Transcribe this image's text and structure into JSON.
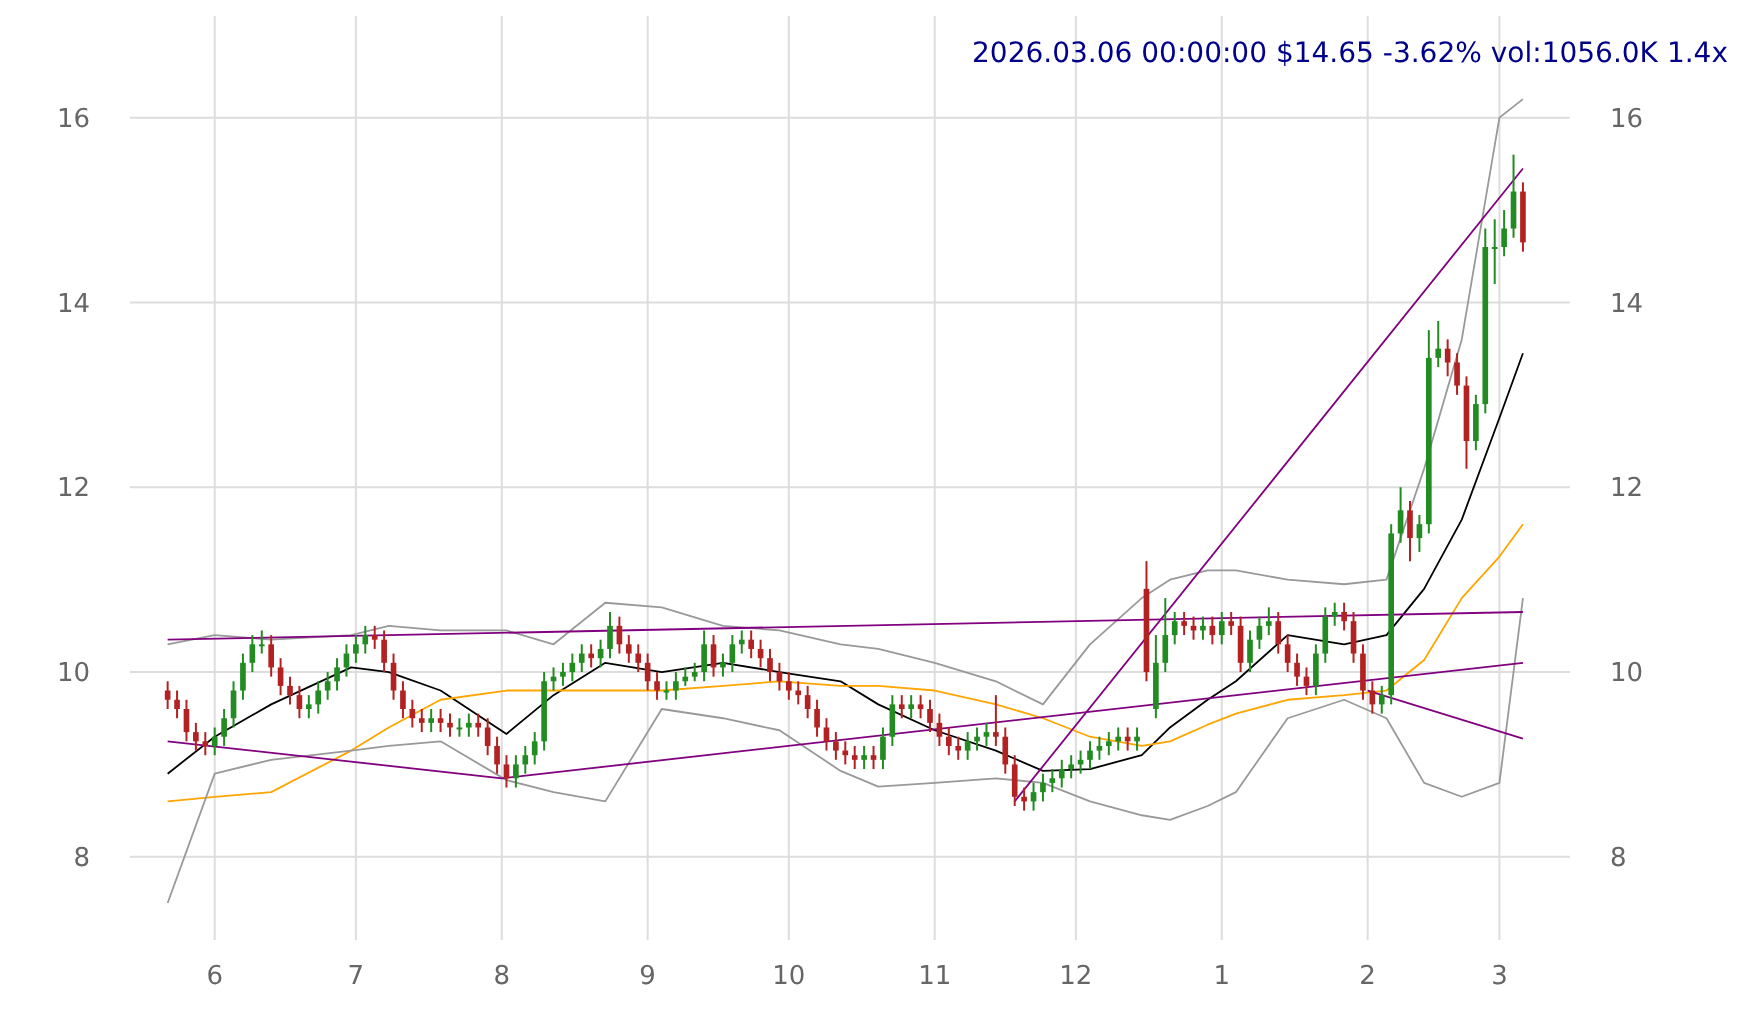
{
  "chart_data": {
    "type": "candlestick",
    "title": "2026.03.06 00:00:00 $14.65 -3.62% vol:1056.0K 1.4x",
    "x": [
      "2025-05-22",
      "2025-05-24",
      "2025-05-26",
      "2025-05-28",
      "2025-05-30",
      "2025-06-01",
      "2025-06-03",
      "2025-06-05",
      "2025-06-07",
      "2025-06-09",
      "2025-06-11",
      "2025-06-13",
      "2025-06-15",
      "2025-06-17",
      "2025-06-19",
      "2025-06-21",
      "2025-06-23",
      "2025-06-25",
      "2025-06-27",
      "2025-06-29",
      "2025-07-01",
      "2025-07-03",
      "2025-07-05",
      "2025-07-07",
      "2025-07-09",
      "2025-07-11",
      "2025-07-13",
      "2025-07-15",
      "2025-07-17",
      "2025-07-19",
      "2025-07-21",
      "2025-07-23",
      "2025-07-25",
      "2025-07-27",
      "2025-07-29",
      "2025-07-31",
      "2025-08-02",
      "2025-08-04",
      "2025-08-06",
      "2025-08-08",
      "2025-08-10",
      "2025-08-12",
      "2025-08-14",
      "2025-08-16",
      "2025-08-18",
      "2025-08-20",
      "2025-08-22",
      "2025-08-24",
      "2025-08-26",
      "2025-08-28",
      "2025-08-30",
      "2025-09-01",
      "2025-09-03",
      "2025-09-05",
      "2025-09-07",
      "2025-09-09",
      "2025-09-11",
      "2025-09-13",
      "2025-09-15",
      "2025-09-17",
      "2025-09-19",
      "2025-09-21",
      "2025-09-23",
      "2025-09-25",
      "2025-09-27",
      "2025-09-29",
      "2025-10-01",
      "2025-10-03",
      "2025-10-05",
      "2025-10-07",
      "2025-10-09",
      "2025-10-11",
      "2025-10-13",
      "2025-10-15",
      "2025-10-17",
      "2025-10-19",
      "2025-10-21",
      "2025-10-23",
      "2025-10-25",
      "2025-10-27",
      "2025-10-29",
      "2025-10-31",
      "2025-11-02",
      "2025-11-04",
      "2025-11-06",
      "2025-11-08",
      "2025-11-10",
      "2025-11-12",
      "2025-11-14",
      "2025-11-16",
      "2025-11-18",
      "2025-11-20",
      "2025-11-22",
      "2025-11-24",
      "2025-11-26",
      "2025-11-28",
      "2025-11-30",
      "2025-12-02",
      "2025-12-04",
      "2025-12-06",
      "2025-12-08",
      "2025-12-10",
      "2025-12-12",
      "2025-12-14",
      "2025-12-16",
      "2025-12-18",
      "2025-12-20",
      "2025-12-22",
      "2025-12-24",
      "2025-12-26",
      "2025-12-28",
      "2025-12-30",
      "2026-01-01",
      "2026-01-03",
      "2026-01-05",
      "2026-01-07",
      "2026-01-09",
      "2026-01-11",
      "2026-01-13",
      "2026-01-15",
      "2026-01-17",
      "2026-01-19",
      "2026-01-21",
      "2026-01-23",
      "2026-01-25",
      "2026-01-27",
      "2026-01-29",
      "2026-01-31",
      "2026-02-02",
      "2026-02-04",
      "2026-02-06",
      "2026-02-08",
      "2026-02-10",
      "2026-02-12",
      "2026-02-14",
      "2026-02-16",
      "2026-02-18",
      "2026-02-20",
      "2026-02-22",
      "2026-02-24",
      "2026-02-26",
      "2026-02-28",
      "2026-03-02",
      "2026-03-04",
      "2026-03-06"
    ],
    "ohlc": [
      [
        9.8,
        9.9,
        9.6,
        9.7
      ],
      [
        9.7,
        9.8,
        9.5,
        9.6
      ],
      [
        9.6,
        9.7,
        9.25,
        9.35
      ],
      [
        9.35,
        9.45,
        9.15,
        9.25
      ],
      [
        9.25,
        9.35,
        9.1,
        9.2
      ],
      [
        9.2,
        9.4,
        9.1,
        9.3
      ],
      [
        9.3,
        9.6,
        9.2,
        9.5
      ],
      [
        9.5,
        9.9,
        9.4,
        9.8
      ],
      [
        9.8,
        10.2,
        9.7,
        10.1
      ],
      [
        10.1,
        10.4,
        10.0,
        10.3
      ],
      [
        10.3,
        10.45,
        10.2,
        10.3
      ],
      [
        10.3,
        10.4,
        9.95,
        10.05
      ],
      [
        10.05,
        10.15,
        9.75,
        9.85
      ],
      [
        9.85,
        9.95,
        9.65,
        9.75
      ],
      [
        9.75,
        9.85,
        9.5,
        9.6
      ],
      [
        9.6,
        9.75,
        9.5,
        9.65
      ],
      [
        9.65,
        9.9,
        9.55,
        9.8
      ],
      [
        9.8,
        10.0,
        9.7,
        9.9
      ],
      [
        9.9,
        10.15,
        9.8,
        10.05
      ],
      [
        10.05,
        10.3,
        9.95,
        10.2
      ],
      [
        10.2,
        10.4,
        10.1,
        10.3
      ],
      [
        10.3,
        10.5,
        10.2,
        10.4
      ],
      [
        10.4,
        10.5,
        10.25,
        10.35
      ],
      [
        10.35,
        10.45,
        10.0,
        10.1
      ],
      [
        10.1,
        10.2,
        9.7,
        9.8
      ],
      [
        9.8,
        9.9,
        9.5,
        9.6
      ],
      [
        9.6,
        9.7,
        9.4,
        9.5
      ],
      [
        9.5,
        9.6,
        9.35,
        9.45
      ],
      [
        9.45,
        9.6,
        9.35,
        9.5
      ],
      [
        9.5,
        9.6,
        9.35,
        9.45
      ],
      [
        9.45,
        9.55,
        9.3,
        9.4
      ],
      [
        9.4,
        9.5,
        9.3,
        9.4
      ],
      [
        9.4,
        9.55,
        9.3,
        9.45
      ],
      [
        9.45,
        9.55,
        9.3,
        9.4
      ],
      [
        9.4,
        9.5,
        9.1,
        9.2
      ],
      [
        9.2,
        9.3,
        8.9,
        9.0
      ],
      [
        9.0,
        9.1,
        8.75,
        8.85
      ],
      [
        8.85,
        9.1,
        8.75,
        9.0
      ],
      [
        9.0,
        9.2,
        8.9,
        9.1
      ],
      [
        9.1,
        9.35,
        9.0,
        9.25
      ],
      [
        9.25,
        10.0,
        9.15,
        9.9
      ],
      [
        9.9,
        10.05,
        9.8,
        9.95
      ],
      [
        9.95,
        10.1,
        9.85,
        10.0
      ],
      [
        10.0,
        10.2,
        9.9,
        10.1
      ],
      [
        10.1,
        10.3,
        10.0,
        10.2
      ],
      [
        10.2,
        10.3,
        10.05,
        10.15
      ],
      [
        10.15,
        10.35,
        10.05,
        10.25
      ],
      [
        10.25,
        10.65,
        10.15,
        10.5
      ],
      [
        10.5,
        10.6,
        10.2,
        10.3
      ],
      [
        10.3,
        10.4,
        10.1,
        10.2
      ],
      [
        10.2,
        10.3,
        10.0,
        10.1
      ],
      [
        10.1,
        10.2,
        9.8,
        9.9
      ],
      [
        9.9,
        10.0,
        9.7,
        9.8
      ],
      [
        9.8,
        9.9,
        9.7,
        9.8
      ],
      [
        9.8,
        10.0,
        9.7,
        9.9
      ],
      [
        9.9,
        10.05,
        9.85,
        9.95
      ],
      [
        9.95,
        10.1,
        9.9,
        10.0
      ],
      [
        10.0,
        10.45,
        9.9,
        10.3
      ],
      [
        10.3,
        10.4,
        9.95,
        10.05
      ],
      [
        10.05,
        10.2,
        9.95,
        10.1
      ],
      [
        10.1,
        10.4,
        10.0,
        10.3
      ],
      [
        10.3,
        10.45,
        10.2,
        10.35
      ],
      [
        10.35,
        10.45,
        10.15,
        10.25
      ],
      [
        10.25,
        10.35,
        10.05,
        10.15
      ],
      [
        10.15,
        10.25,
        9.9,
        10.0
      ],
      [
        10.0,
        10.1,
        9.8,
        9.9
      ],
      [
        9.9,
        10.0,
        9.7,
        9.8
      ],
      [
        9.8,
        9.9,
        9.65,
        9.75
      ],
      [
        9.75,
        9.85,
        9.5,
        9.6
      ],
      [
        9.6,
        9.7,
        9.3,
        9.4
      ],
      [
        9.4,
        9.5,
        9.15,
        9.25
      ],
      [
        9.25,
        9.35,
        9.05,
        9.15
      ],
      [
        9.15,
        9.25,
        9.0,
        9.1
      ],
      [
        9.1,
        9.2,
        8.95,
        9.05
      ],
      [
        9.05,
        9.2,
        8.95,
        9.1
      ],
      [
        9.1,
        9.2,
        8.95,
        9.05
      ],
      [
        9.05,
        9.4,
        8.95,
        9.3
      ],
      [
        9.3,
        9.75,
        9.2,
        9.65
      ],
      [
        9.65,
        9.75,
        9.5,
        9.6
      ],
      [
        9.6,
        9.75,
        9.5,
        9.65
      ],
      [
        9.65,
        9.75,
        9.5,
        9.6
      ],
      [
        9.6,
        9.7,
        9.35,
        9.45
      ],
      [
        9.45,
        9.55,
        9.2,
        9.3
      ],
      [
        9.3,
        9.4,
        9.1,
        9.2
      ],
      [
        9.2,
        9.3,
        9.05,
        9.15
      ],
      [
        9.15,
        9.35,
        9.05,
        9.25
      ],
      [
        9.25,
        9.4,
        9.15,
        9.3
      ],
      [
        9.3,
        9.45,
        9.2,
        9.35
      ],
      [
        9.35,
        9.75,
        9.2,
        9.3
      ],
      [
        9.3,
        9.4,
        8.9,
        9.0
      ],
      [
        9.0,
        9.1,
        8.55,
        8.65
      ],
      [
        8.65,
        8.75,
        8.5,
        8.6
      ],
      [
        8.6,
        8.8,
        8.5,
        8.7
      ],
      [
        8.7,
        8.9,
        8.6,
        8.8
      ],
      [
        8.8,
        8.95,
        8.7,
        8.85
      ],
      [
        8.85,
        9.05,
        8.75,
        8.95
      ],
      [
        8.95,
        9.1,
        8.85,
        9.0
      ],
      [
        9.0,
        9.15,
        8.9,
        9.05
      ],
      [
        9.05,
        9.25,
        8.95,
        9.15
      ],
      [
        9.15,
        9.3,
        9.05,
        9.2
      ],
      [
        9.2,
        9.35,
        9.1,
        9.25
      ],
      [
        9.25,
        9.4,
        9.15,
        9.3
      ],
      [
        9.3,
        9.4,
        9.15,
        9.25
      ],
      [
        9.25,
        9.4,
        9.15,
        9.3
      ],
      [
        10.9,
        11.2,
        9.9,
        10.0
      ],
      [
        9.6,
        10.4,
        9.5,
        10.1
      ],
      [
        10.1,
        10.8,
        10.0,
        10.4
      ],
      [
        10.4,
        10.65,
        10.3,
        10.55
      ],
      [
        10.55,
        10.65,
        10.4,
        10.5
      ],
      [
        10.5,
        10.6,
        10.35,
        10.45
      ],
      [
        10.45,
        10.6,
        10.35,
        10.5
      ],
      [
        10.5,
        10.6,
        10.3,
        10.4
      ],
      [
        10.4,
        10.65,
        10.3,
        10.55
      ],
      [
        10.55,
        10.65,
        10.4,
        10.5
      ],
      [
        10.5,
        10.6,
        10.0,
        10.1
      ],
      [
        10.1,
        10.45,
        10.0,
        10.35
      ],
      [
        10.35,
        10.6,
        10.25,
        10.5
      ],
      [
        10.5,
        10.7,
        10.4,
        10.55
      ],
      [
        10.55,
        10.65,
        10.2,
        10.3
      ],
      [
        10.3,
        10.4,
        10.0,
        10.1
      ],
      [
        10.1,
        10.2,
        9.85,
        9.95
      ],
      [
        9.95,
        10.05,
        9.75,
        9.85
      ],
      [
        9.85,
        10.3,
        9.75,
        10.2
      ],
      [
        10.2,
        10.7,
        10.1,
        10.6
      ],
      [
        10.6,
        10.75,
        10.5,
        10.65
      ],
      [
        10.65,
        10.75,
        10.45,
        10.55
      ],
      [
        10.55,
        10.65,
        10.1,
        10.2
      ],
      [
        10.2,
        10.3,
        9.7,
        9.8
      ],
      [
        9.8,
        9.9,
        9.55,
        9.65
      ],
      [
        9.65,
        9.85,
        9.55,
        9.75
      ],
      [
        9.75,
        11.6,
        9.65,
        11.5
      ],
      [
        11.5,
        12.0,
        11.4,
        11.75
      ],
      [
        11.75,
        11.85,
        11.2,
        11.45
      ],
      [
        11.45,
        11.7,
        11.3,
        11.6
      ],
      [
        11.6,
        13.7,
        11.5,
        13.4
      ],
      [
        13.4,
        13.8,
        13.3,
        13.5
      ],
      [
        13.5,
        13.6,
        13.2,
        13.35
      ],
      [
        13.35,
        13.45,
        13.0,
        13.1
      ],
      [
        13.1,
        13.2,
        12.2,
        12.5
      ],
      [
        12.5,
        13.0,
        12.4,
        12.9
      ],
      [
        12.9,
        14.8,
        12.8,
        14.6
      ],
      [
        14.6,
        14.9,
        14.2,
        14.6
      ],
      [
        14.6,
        15.0,
        14.5,
        14.8
      ],
      [
        14.8,
        15.6,
        14.7,
        15.2
      ],
      [
        15.2,
        15.3,
        14.55,
        14.65
      ]
    ],
    "series": [
      {
        "type": "line",
        "color": "#000000",
        "x": [
          "2025-05-22",
          "2025-06-01",
          "2025-06-13",
          "2025-06-30",
          "2025-07-08",
          "2025-07-19",
          "2025-08-02",
          "2025-08-12",
          "2025-08-23",
          "2025-09-04",
          "2025-09-17",
          "2025-09-29",
          "2025-10-12",
          "2025-10-20",
          "2025-11-01",
          "2025-11-14",
          "2025-11-24",
          "2025-12-04",
          "2025-12-15",
          "2025-12-21",
          "2025-12-29",
          "2026-01-04",
          "2026-01-15",
          "2026-01-27",
          "2026-02-05",
          "2026-02-13",
          "2026-02-21",
          "2026-03-01",
          "2026-03-06"
        ],
        "values": [
          8.9,
          9.3,
          9.65,
          10.05,
          10.0,
          9.8,
          9.33,
          9.75,
          10.1,
          10.0,
          10.1,
          10.0,
          9.9,
          9.65,
          9.37,
          9.15,
          8.93,
          8.95,
          9.1,
          9.4,
          9.7,
          9.9,
          10.4,
          10.3,
          10.4,
          10.9,
          11.65,
          12.75,
          13.45
        ]
      },
      {
        "type": "line",
        "color": "#ffa500",
        "x": [
          "2025-05-22",
          "2025-06-01",
          "2025-06-13",
          "2025-06-30",
          "2025-07-08",
          "2025-07-19",
          "2025-08-02",
          "2025-08-12",
          "2025-08-23",
          "2025-09-04",
          "2025-09-17",
          "2025-09-29",
          "2025-10-12",
          "2025-10-20",
          "2025-11-01",
          "2025-11-14",
          "2025-11-24",
          "2025-12-04",
          "2025-12-15",
          "2025-12-21",
          "2025-12-29",
          "2026-01-04",
          "2026-01-15",
          "2026-01-27",
          "2026-02-05",
          "2026-02-13",
          "2026-02-21",
          "2026-03-01",
          "2026-03-06"
        ],
        "values": [
          8.6,
          8.65,
          8.7,
          9.15,
          9.4,
          9.7,
          9.8,
          9.8,
          9.8,
          9.8,
          9.85,
          9.9,
          9.85,
          9.85,
          9.8,
          9.65,
          9.5,
          9.3,
          9.2,
          9.25,
          9.43,
          9.55,
          9.7,
          9.75,
          9.8,
          10.13,
          10.8,
          11.25,
          11.6
        ]
      },
      {
        "type": "line",
        "color": "#999999",
        "x": [
          "2025-05-22",
          "2025-06-01",
          "2025-06-13",
          "2025-06-30",
          "2025-07-08",
          "2025-07-19",
          "2025-08-02",
          "2025-08-12",
          "2025-08-23",
          "2025-09-04",
          "2025-09-17",
          "2025-09-29",
          "2025-10-12",
          "2025-10-20",
          "2025-11-01",
          "2025-11-14",
          "2025-11-24",
          "2025-12-04",
          "2025-12-15",
          "2025-12-21",
          "2025-12-29",
          "2026-01-04",
          "2026-01-15",
          "2026-01-27",
          "2026-02-05",
          "2026-02-13",
          "2026-02-21",
          "2026-03-01",
          "2026-03-06"
        ],
        "values": [
          10.3,
          10.4,
          10.35,
          10.4,
          10.5,
          10.45,
          10.45,
          10.3,
          10.75,
          10.7,
          10.5,
          10.45,
          10.3,
          10.25,
          10.1,
          9.9,
          9.65,
          10.3,
          10.8,
          11.0,
          11.1,
          11.1,
          11.0,
          10.95,
          11.0,
          12.2,
          13.6,
          16.0,
          16.2
        ]
      },
      {
        "type": "line",
        "color": "#999999",
        "x": [
          "2025-05-22",
          "2025-06-01",
          "2025-06-13",
          "2025-06-30",
          "2025-07-08",
          "2025-07-19",
          "2025-08-02",
          "2025-08-12",
          "2025-08-23",
          "2025-09-04",
          "2025-09-17",
          "2025-09-29",
          "2025-10-12",
          "2025-10-20",
          "2025-11-01",
          "2025-11-14",
          "2025-11-24",
          "2025-12-04",
          "2025-12-15",
          "2025-12-21",
          "2025-12-29",
          "2026-01-04",
          "2026-01-15",
          "2026-01-27",
          "2026-02-05",
          "2026-02-13",
          "2026-02-21",
          "2026-03-01",
          "2026-03-06"
        ],
        "values": [
          7.5,
          8.9,
          9.05,
          9.15,
          9.2,
          9.25,
          8.83,
          8.7,
          8.6,
          9.6,
          9.5,
          9.37,
          8.93,
          8.76,
          8.8,
          8.85,
          8.8,
          8.6,
          8.45,
          8.4,
          8.55,
          8.7,
          9.5,
          9.7,
          9.5,
          8.8,
          8.65,
          8.8,
          10.8
        ]
      },
      {
        "type": "line",
        "color": "#800080",
        "x": [
          "2025-05-22",
          "2025-08-01",
          "2026-03-06"
        ],
        "values": [
          9.25,
          8.85,
          10.1
        ]
      },
      {
        "type": "line",
        "color": "#800080",
        "x": [
          "2025-05-22",
          "2026-03-06"
        ],
        "values": [
          10.35,
          10.65
        ]
      },
      {
        "type": "line",
        "color": "#800080",
        "x": [
          "2025-11-18",
          "2026-03-06"
        ],
        "values": [
          8.6,
          15.45
        ]
      },
      {
        "type": "line",
        "color": "#800080",
        "x": [
          "2026-02-01",
          "2026-03-06"
        ],
        "values": [
          9.8,
          9.28
        ]
      }
    ],
    "xlim": [
      "2025-05-14",
      "2026-03-16"
    ],
    "xticks": [
      {
        "value": "2025-06-01",
        "label": "6"
      },
      {
        "value": "2025-07-01",
        "label": "7"
      },
      {
        "value": "2025-08-01",
        "label": "8"
      },
      {
        "value": "2025-09-01",
        "label": "9"
      },
      {
        "value": "2025-10-01",
        "label": "10"
      },
      {
        "value": "2025-11-01",
        "label": "11"
      },
      {
        "value": "2025-12-01",
        "label": "12"
      },
      {
        "value": "2026-01-01",
        "label": "1"
      },
      {
        "value": "2026-02-01",
        "label": "2"
      },
      {
        "value": "2026-03-01",
        "label": "3"
      }
    ],
    "ylim": [
      7.1,
      17.1
    ],
    "yticks": [
      8,
      10,
      12,
      14,
      16
    ],
    "y2lim": [
      7.1,
      17.1
    ],
    "y2ticks": [
      8,
      10,
      12,
      14,
      16
    ],
    "grid": true
  }
}
